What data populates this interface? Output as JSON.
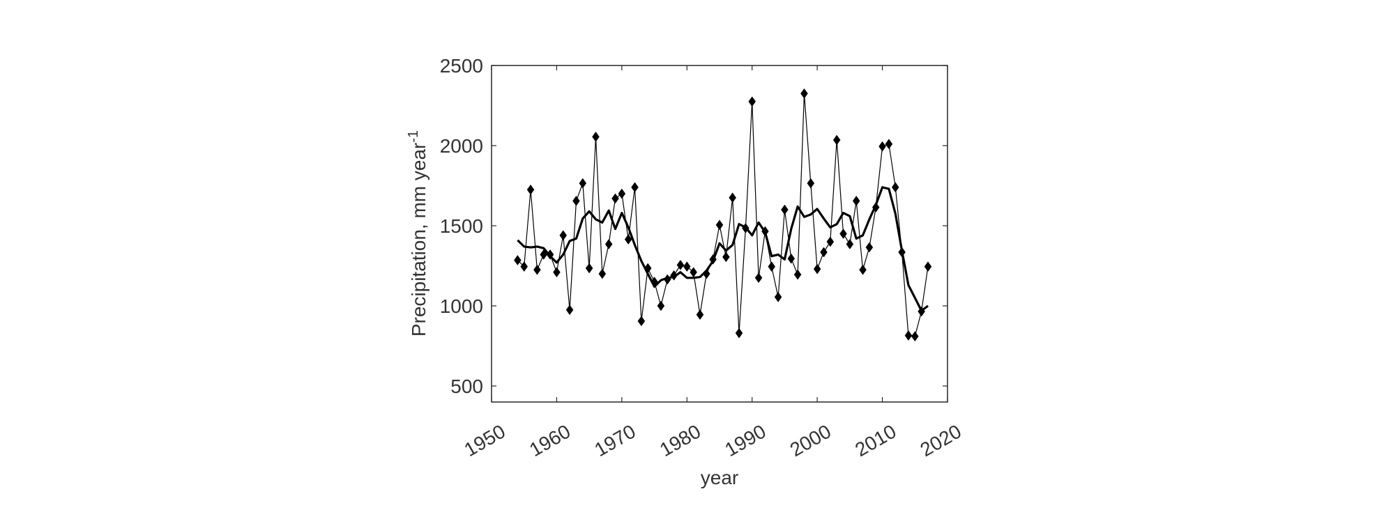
{
  "chart_data": {
    "type": "line",
    "title": "",
    "xlabel": "year",
    "ylabel": "Precipitation, mm year",
    "ylabel_superscript": "-1",
    "xlim": [
      1950,
      2020
    ],
    "ylim": [
      400,
      2500
    ],
    "xticks": [
      1950,
      1960,
      1970,
      1980,
      1990,
      2000,
      2010,
      2020
    ],
    "yticks": [
      500,
      1000,
      1500,
      2000,
      2500
    ],
    "grid": false,
    "colors": {
      "series": "#000000",
      "axes": "#333333"
    },
    "series": [
      {
        "marker": "diamond",
        "line": "thin",
        "x": [
          1954,
          1955,
          1956,
          1957,
          1958,
          1959,
          1960,
          1961,
          1962,
          1963,
          1964,
          1965,
          1966,
          1967,
          1968,
          1969,
          1970,
          1971,
          1972,
          1973,
          1974,
          1975,
          1976,
          1977,
          1978,
          1979,
          1980,
          1981,
          1982,
          1983,
          1984,
          1985,
          1986,
          1987,
          1988,
          1989,
          1990,
          1991,
          1992,
          1993,
          1994,
          1995,
          1996,
          1997,
          1998,
          1999,
          2000,
          2001,
          2002,
          2003,
          2004,
          2005,
          2006,
          2007,
          2008,
          2009,
          2010,
          2011,
          2012,
          2013,
          2014,
          2015,
          2016,
          2017
        ],
        "y": [
          1285,
          1245,
          1725,
          1225,
          1320,
          1320,
          1210,
          1440,
          975,
          1655,
          1765,
          1235,
          2055,
          1200,
          1385,
          1670,
          1700,
          1415,
          1740,
          905,
          1235,
          1150,
          1000,
          1165,
          1190,
          1255,
          1245,
          1210,
          945,
          1200,
          1290,
          1505,
          1305,
          1675,
          830,
          1485,
          2275,
          1175,
          1465,
          1245,
          1055,
          1600,
          1295,
          1195,
          2325,
          1765,
          1230,
          1335,
          1400,
          2035,
          1450,
          1385,
          1655,
          1225,
          1365,
          1615,
          1995,
          2010,
          1740,
          1335,
          815,
          810,
          965,
          1245
        ]
      },
      {
        "marker": "none",
        "line": "thick",
        "x": [
          1954,
          1955,
          1956,
          1957,
          1958,
          1959,
          1960,
          1961,
          1962,
          1963,
          1964,
          1965,
          1966,
          1967,
          1968,
          1969,
          1970,
          1971,
          1972,
          1973,
          1974,
          1975,
          1976,
          1977,
          1978,
          1979,
          1980,
          1981,
          1982,
          1983,
          1984,
          1985,
          1986,
          1987,
          1988,
          1989,
          1990,
          1991,
          1992,
          1993,
          1994,
          1995,
          1996,
          1997,
          1998,
          1999,
          2000,
          2001,
          2002,
          2003,
          2004,
          2005,
          2006,
          2007,
          2008,
          2009,
          2010,
          2011,
          2012,
          2013,
          2014,
          2015,
          2016,
          2017
        ],
        "y": [
          1410,
          1370,
          1365,
          1370,
          1360,
          1310,
          1270,
          1320,
          1405,
          1420,
          1545,
          1590,
          1540,
          1520,
          1595,
          1480,
          1580,
          1490,
          1380,
          1280,
          1200,
          1120,
          1160,
          1175,
          1180,
          1210,
          1175,
          1175,
          1180,
          1220,
          1280,
          1390,
          1345,
          1380,
          1510,
          1490,
          1440,
          1520,
          1460,
          1310,
          1320,
          1290,
          1480,
          1620,
          1555,
          1570,
          1605,
          1545,
          1490,
          1510,
          1580,
          1560,
          1420,
          1440,
          1540,
          1630,
          1740,
          1730,
          1575,
          1345,
          1130,
          1050,
          970,
          1000
        ]
      }
    ]
  }
}
